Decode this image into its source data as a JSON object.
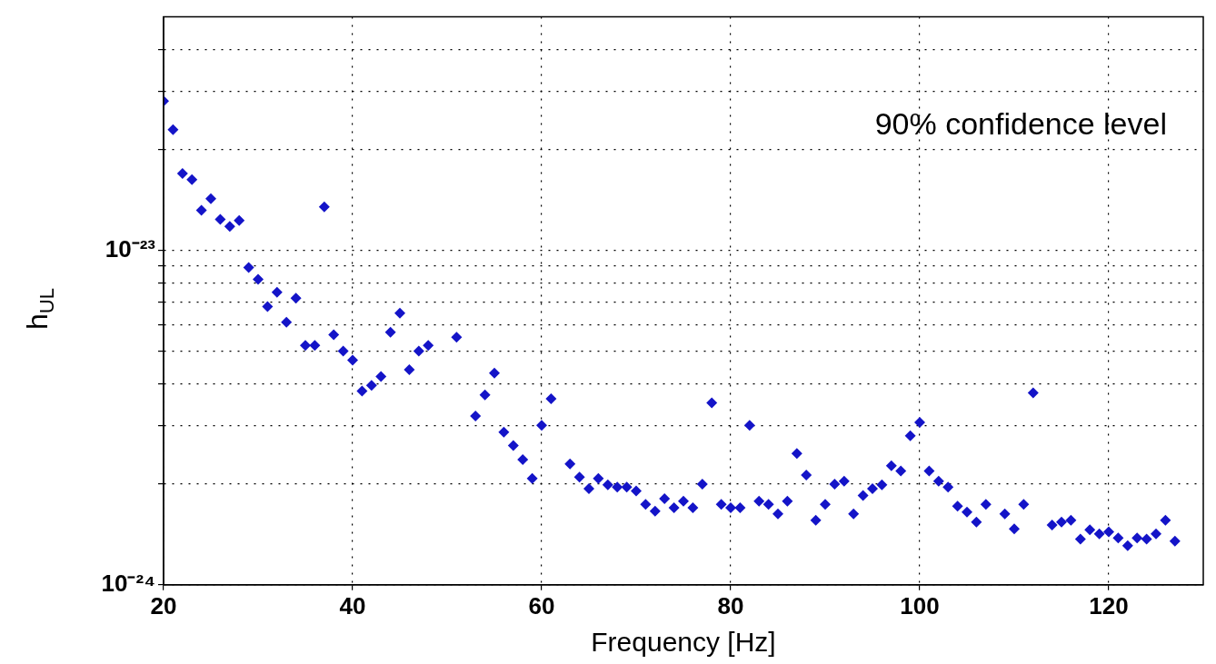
{
  "chart_data": {
    "type": "scatter",
    "xlabel": "Frequency [Hz]",
    "ylabel": "h$_{UL}$",
    "annotations": [
      "90% confidence level"
    ],
    "log": "y",
    "grid": true,
    "legend": false,
    "marker": "diamond",
    "xlim": [
      20,
      130
    ],
    "xticks": [
      20,
      40,
      60,
      80,
      100,
      120
    ],
    "ylim": [
      1e-24,
      5e-23
    ],
    "yticks": [
      {
        "value": 1e-24,
        "label": "10⁻²⁴"
      },
      {
        "value": 2e-24,
        "label": null
      },
      {
        "value": 3e-24,
        "label": null
      },
      {
        "value": 4e-24,
        "label": null
      },
      {
        "value": 5e-24,
        "label": null
      },
      {
        "value": 6e-24,
        "label": null
      },
      {
        "value": 7e-24,
        "label": null
      },
      {
        "value": 8e-24,
        "label": null
      },
      {
        "value": 9e-24,
        "label": null
      },
      {
        "value": 1e-23,
        "label": "10⁻²³"
      },
      {
        "value": 2e-23,
        "label": null
      },
      {
        "value": 3e-23,
        "label": null
      },
      {
        "value": 4e-23,
        "label": null
      }
    ],
    "series": [
      {
        "color": "#1414c8",
        "x": [
          20,
          21,
          22,
          23,
          24,
          25,
          26,
          27,
          28,
          29,
          30,
          31,
          32,
          33,
          34,
          35,
          36,
          37,
          38,
          39,
          40,
          41,
          42,
          43,
          44,
          45,
          46,
          47,
          48,
          51,
          53,
          54,
          55,
          56,
          57,
          58,
          59,
          60,
          61,
          63,
          64,
          65,
          66,
          67,
          68,
          69,
          70,
          71,
          72,
          73,
          74,
          75,
          76,
          77,
          78,
          79,
          80,
          81,
          82,
          83,
          84,
          85,
          86,
          87,
          88,
          89,
          90,
          91,
          92,
          93,
          94,
          95,
          96,
          97,
          98,
          99,
          100,
          101,
          102,
          103,
          104,
          105,
          106,
          107,
          109,
          110,
          111,
          112,
          114,
          115,
          116,
          117,
          118,
          119,
          120,
          121,
          122,
          123,
          124,
          125,
          126,
          127
        ],
        "values": [
          2.8e-23,
          2.3e-23,
          1.7e-23,
          1.63e-23,
          1.32e-23,
          1.43e-23,
          1.24e-23,
          1.18e-23,
          1.23e-23,
          8.9e-24,
          8.2e-24,
          6.8e-24,
          7.5e-24,
          6.1e-24,
          7.2e-24,
          5.2e-24,
          5.2e-24,
          1.35e-23,
          5.6e-24,
          5e-24,
          4.7e-24,
          3.8e-24,
          3.95e-24,
          4.2e-24,
          5.7e-24,
          6.5e-24,
          4.4e-24,
          5e-24,
          5.2e-24,
          5.5e-24,
          3.2e-24,
          3.7e-24,
          4.3e-24,
          2.86e-24,
          2.61e-24,
          2.37e-24,
          2.08e-24,
          3e-24,
          3.6e-24,
          2.3e-24,
          2.1e-24,
          1.94e-24,
          2.08e-24,
          1.99e-24,
          1.96e-24,
          1.96e-24,
          1.91e-24,
          1.74e-24,
          1.66e-24,
          1.81e-24,
          1.7e-24,
          1.78e-24,
          1.7e-24,
          2e-24,
          3.5e-24,
          1.74e-24,
          1.7e-24,
          1.7e-24,
          3e-24,
          1.78e-24,
          1.74e-24,
          1.63e-24,
          1.78e-24,
          2.47e-24,
          2.13e-24,
          1.56e-24,
          1.74e-24,
          2e-24,
          2.04e-24,
          1.63e-24,
          1.85e-24,
          1.94e-24,
          1.99e-24,
          2.27e-24,
          2.19e-24,
          2.79e-24,
          3.06e-24,
          2.19e-24,
          2.04e-24,
          1.96e-24,
          1.72e-24,
          1.65e-24,
          1.54e-24,
          1.74e-24,
          1.63e-24,
          1.47e-24,
          1.74e-24,
          3.75e-24,
          1.51e-24,
          1.54e-24,
          1.56e-24,
          1.37e-24,
          1.46e-24,
          1.42e-24,
          1.44e-24,
          1.38e-24,
          1.31e-24,
          1.38e-24,
          1.37e-24,
          1.42e-24,
          1.56e-24,
          1.35e-24
        ]
      }
    ]
  }
}
